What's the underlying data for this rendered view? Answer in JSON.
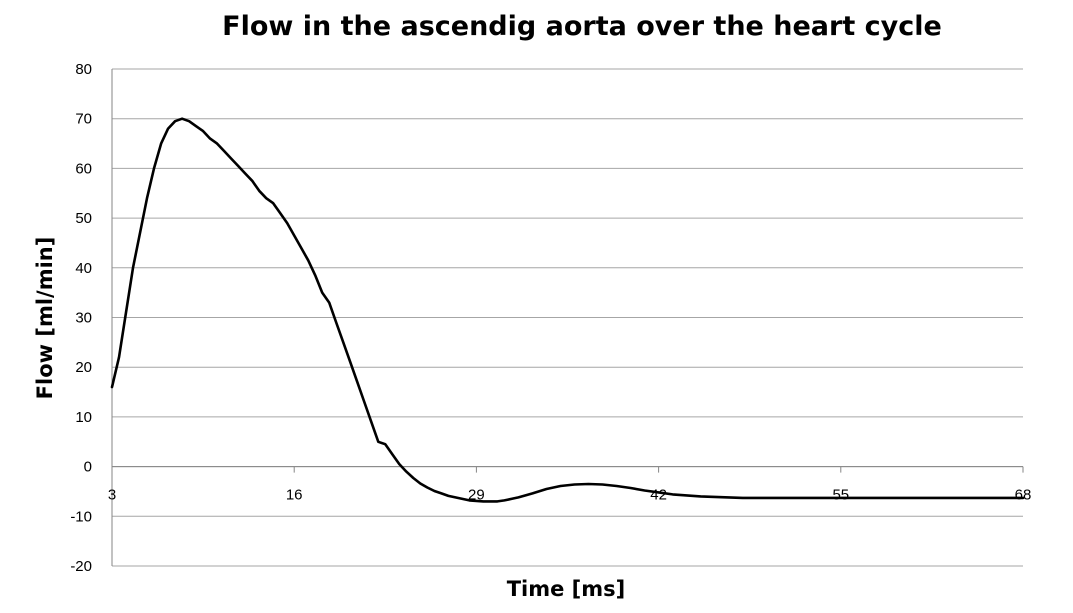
{
  "chart_data": {
    "type": "line",
    "title": "Flow in the ascendig aorta over the heart cycle",
    "xlabel": "Time [ms]",
    "ylabel": "Flow [ml/min]",
    "x_ticks": [
      "3",
      "16",
      "29",
      "42",
      "55",
      "68"
    ],
    "y_ticks": [
      80,
      70,
      60,
      50,
      40,
      30,
      20,
      10,
      0,
      -10,
      -20
    ],
    "xlim": [
      3,
      68
    ],
    "ylim": [
      -20,
      80
    ],
    "grid": true,
    "legend": "none",
    "series": [
      {
        "x": [
          3,
          3.5,
          4,
          4.5,
          5,
          5.5,
          6,
          6.5,
          7,
          7.5,
          8,
          8.5,
          9,
          9.5,
          10,
          10.5,
          11,
          11.5,
          12,
          12.5,
          13,
          13.5,
          14,
          14.5,
          15,
          15.5,
          16,
          16.5,
          17,
          17.5,
          18,
          18.5,
          19,
          19.5,
          20,
          20.5,
          21,
          21.5,
          22,
          22.5,
          23,
          23.5,
          24,
          24.5,
          25,
          25.5,
          26,
          26.5,
          27,
          27.5,
          28,
          28.5,
          29,
          29.5,
          30,
          30.5,
          31,
          31.5,
          32,
          32.5,
          33,
          34,
          35,
          36,
          37,
          38,
          39,
          40,
          41,
          42,
          43,
          44,
          45,
          46,
          47,
          48,
          49,
          50,
          51,
          52,
          53,
          54,
          55,
          56,
          57,
          58,
          59,
          60,
          61,
          62,
          63,
          64,
          65,
          66,
          67,
          68
        ],
        "y": [
          16,
          22,
          31,
          40,
          47,
          54,
          60,
          65,
          68,
          69.5,
          70,
          69.5,
          68.5,
          67.5,
          66,
          65,
          63.5,
          62,
          60.5,
          59,
          57.5,
          55.5,
          54,
          53,
          51,
          49,
          46.5,
          44,
          41.5,
          38.5,
          35,
          33,
          29,
          25,
          21,
          17,
          13,
          9,
          5,
          4.5,
          2.5,
          0.5,
          -1,
          -2.3,
          -3.4,
          -4.2,
          -4.9,
          -5.4,
          -5.9,
          -6.2,
          -6.5,
          -6.8,
          -6.9,
          -7,
          -7,
          -7,
          -6.8,
          -6.5,
          -6.2,
          -5.8,
          -5.4,
          -4.5,
          -3.9,
          -3.6,
          -3.5,
          -3.6,
          -3.9,
          -4.3,
          -4.8,
          -5.2,
          -5.6,
          -5.8,
          -6,
          -6.1,
          -6.2,
          -6.3,
          -6.3,
          -6.3,
          -6.3,
          -6.3,
          -6.3,
          -6.3,
          -6.3,
          -6.3,
          -6.3,
          -6.3,
          -6.3,
          -6.3,
          -6.3,
          -6.3,
          -6.3,
          -6.3,
          -6.3,
          -6.3,
          -6.3,
          -6.3
        ]
      }
    ]
  }
}
